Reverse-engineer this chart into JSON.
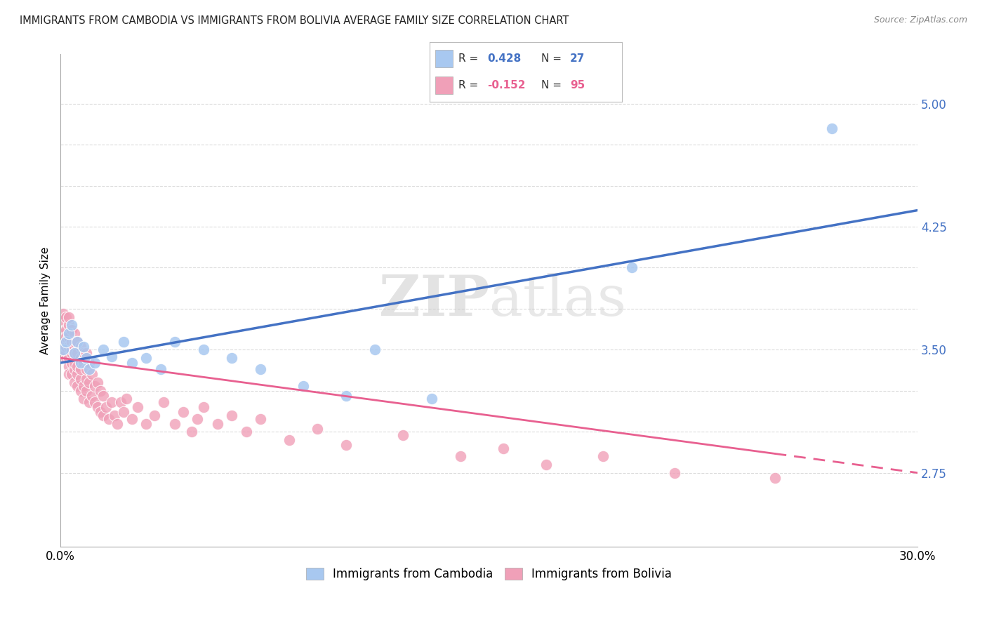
{
  "title": "IMMIGRANTS FROM CAMBODIA VS IMMIGRANTS FROM BOLIVIA AVERAGE FAMILY SIZE CORRELATION CHART",
  "source": "Source: ZipAtlas.com",
  "ylabel": "Average Family Size",
  "ylim": [
    2.3,
    5.3
  ],
  "xlim": [
    0.0,
    0.3
  ],
  "cambodia_color": "#a8c8f0",
  "bolivia_color": "#f0a0b8",
  "cambodia_line_color": "#4472c4",
  "bolivia_line_color": "#e86090",
  "R_cambodia": 0.428,
  "N_cambodia": 27,
  "R_bolivia": -0.152,
  "N_bolivia": 95,
  "legend_label_cambodia": "Immigrants from Cambodia",
  "legend_label_bolivia": "Immigrants from Bolivia",
  "watermark": "ZIPatlas",
  "background_color": "#ffffff",
  "grid_color": "#d8d8d8",
  "cambodia_x": [
    0.001,
    0.002,
    0.003,
    0.004,
    0.005,
    0.006,
    0.007,
    0.008,
    0.009,
    0.01,
    0.012,
    0.015,
    0.018,
    0.022,
    0.025,
    0.03,
    0.035,
    0.04,
    0.05,
    0.06,
    0.07,
    0.085,
    0.1,
    0.11,
    0.13,
    0.2,
    0.27
  ],
  "cambodia_y": [
    3.5,
    3.55,
    3.6,
    3.65,
    3.48,
    3.55,
    3.42,
    3.52,
    3.45,
    3.38,
    3.42,
    3.5,
    3.46,
    3.55,
    3.42,
    3.45,
    3.38,
    3.55,
    3.5,
    3.45,
    3.38,
    3.28,
    3.22,
    3.5,
    3.2,
    4.0,
    4.85
  ],
  "bolivia_x": [
    0.001,
    0.001,
    0.001,
    0.001,
    0.001,
    0.002,
    0.002,
    0.002,
    0.002,
    0.002,
    0.002,
    0.002,
    0.003,
    0.003,
    0.003,
    0.003,
    0.003,
    0.003,
    0.003,
    0.004,
    0.004,
    0.004,
    0.004,
    0.004,
    0.004,
    0.005,
    0.005,
    0.005,
    0.005,
    0.005,
    0.005,
    0.005,
    0.006,
    0.006,
    0.006,
    0.006,
    0.006,
    0.007,
    0.007,
    0.007,
    0.007,
    0.007,
    0.008,
    0.008,
    0.008,
    0.008,
    0.009,
    0.009,
    0.009,
    0.009,
    0.01,
    0.01,
    0.01,
    0.011,
    0.011,
    0.012,
    0.012,
    0.013,
    0.013,
    0.014,
    0.014,
    0.015,
    0.015,
    0.016,
    0.017,
    0.018,
    0.019,
    0.02,
    0.021,
    0.022,
    0.023,
    0.025,
    0.027,
    0.03,
    0.033,
    0.036,
    0.04,
    0.043,
    0.046,
    0.048,
    0.05,
    0.055,
    0.06,
    0.065,
    0.07,
    0.08,
    0.09,
    0.1,
    0.12,
    0.14,
    0.155,
    0.17,
    0.19,
    0.215,
    0.25
  ],
  "bolivia_y": [
    3.6,
    3.55,
    3.5,
    3.68,
    3.72,
    3.45,
    3.55,
    3.62,
    3.7,
    3.48,
    3.52,
    3.58,
    3.4,
    3.52,
    3.58,
    3.65,
    3.7,
    3.45,
    3.35,
    3.48,
    3.55,
    3.62,
    3.35,
    3.42,
    3.5,
    3.38,
    3.52,
    3.6,
    3.3,
    3.42,
    3.48,
    3.55,
    3.35,
    3.48,
    3.55,
    3.28,
    3.4,
    3.32,
    3.45,
    3.52,
    3.25,
    3.38,
    3.28,
    3.42,
    3.48,
    3.2,
    3.32,
    3.38,
    3.48,
    3.25,
    3.18,
    3.3,
    3.42,
    3.22,
    3.35,
    3.18,
    3.28,
    3.15,
    3.3,
    3.12,
    3.25,
    3.1,
    3.22,
    3.15,
    3.08,
    3.18,
    3.1,
    3.05,
    3.18,
    3.12,
    3.2,
    3.08,
    3.15,
    3.05,
    3.1,
    3.18,
    3.05,
    3.12,
    3.0,
    3.08,
    3.15,
    3.05,
    3.1,
    3.0,
    3.08,
    2.95,
    3.02,
    2.92,
    2.98,
    2.85,
    2.9,
    2.8,
    2.85,
    2.75,
    2.72
  ]
}
